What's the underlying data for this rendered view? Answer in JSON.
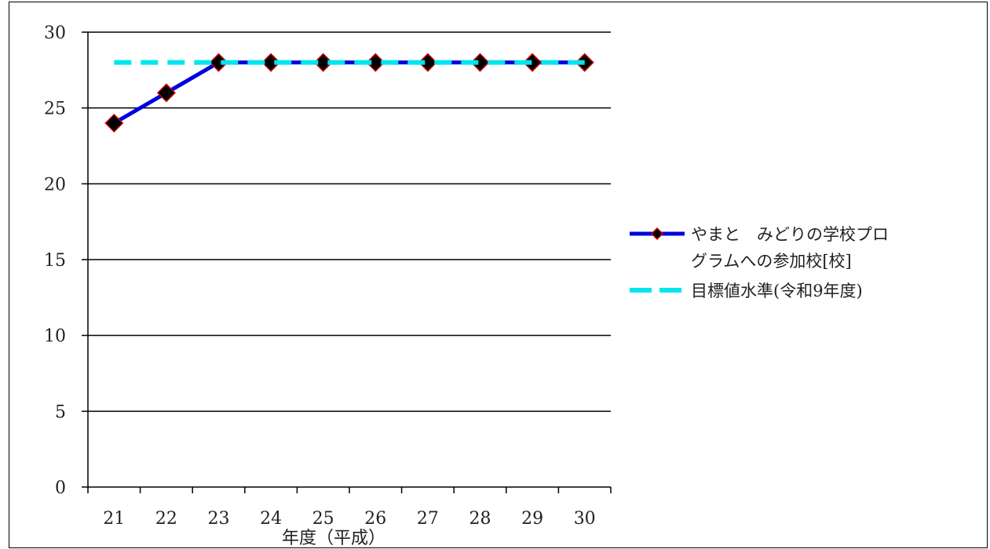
{
  "chart_data": {
    "type": "line",
    "title": "",
    "xlabel": "年度（平成）",
    "ylabel": "",
    "categories": [
      "21",
      "22",
      "23",
      "24",
      "25",
      "26",
      "27",
      "28",
      "29",
      "30"
    ],
    "ylim": [
      0,
      30
    ],
    "yticks": [
      0,
      5,
      10,
      15,
      20,
      25,
      30
    ],
    "grid": "horizontal",
    "legend_position": "right",
    "series": [
      {
        "name_lines": [
          "やまと　みどりの学校プロ",
          "グラムへの参加校[校]"
        ],
        "values": [
          24,
          26,
          28,
          28,
          28,
          28,
          28,
          28,
          28,
          28
        ],
        "line_color": "#0000dd",
        "marker": "diamond",
        "marker_fill": "#000000",
        "marker_edge": "#cc0000",
        "style": "solid"
      },
      {
        "name_lines": [
          "目標値水準(令和9年度)"
        ],
        "values": [
          28,
          28,
          28,
          28,
          28,
          28,
          28,
          28,
          28,
          28
        ],
        "line_color": "#00e5ee",
        "style": "dashed"
      }
    ]
  }
}
